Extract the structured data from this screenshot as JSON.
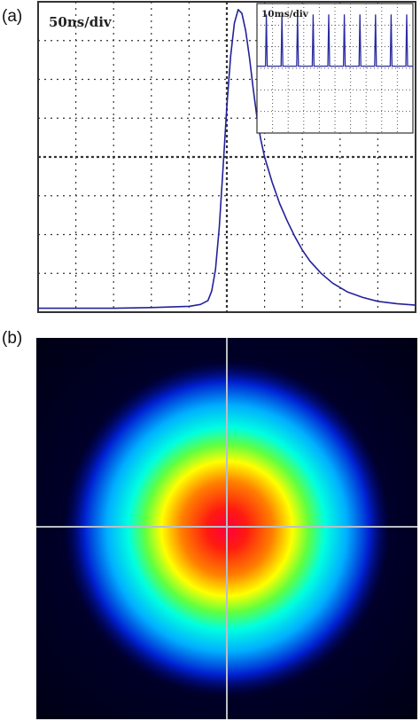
{
  "panels": [
    {
      "label": "(a)"
    },
    {
      "label": "(b)"
    }
  ],
  "chart_data": [
    {
      "type": "line",
      "panel": "(a)",
      "annotation": "50ns/div",
      "xlim": [
        0,
        10
      ],
      "ylim": [
        0,
        8
      ],
      "grid": true,
      "grid_style": "dotted oscilloscope graticule, 10 x 8 divisions",
      "line_color": "#22229a",
      "series": [
        {
          "x": [
            0,
            1,
            2,
            3,
            4,
            4.3,
            4.5,
            4.6,
            4.7,
            4.8,
            4.9,
            5.0,
            5.1,
            5.2,
            5.3,
            5.4,
            5.5,
            5.6,
            5.7,
            5.8,
            5.9,
            6.0,
            6.2,
            6.4,
            6.6,
            6.8,
            7.0,
            7.2,
            7.5,
            7.8,
            8.2,
            8.6,
            9.0,
            9.5,
            10
          ],
          "y": [
            0.1,
            0.1,
            0.1,
            0.12,
            0.15,
            0.2,
            0.3,
            0.55,
            1.1,
            2.2,
            3.7,
            5.3,
            6.6,
            7.45,
            7.8,
            7.7,
            7.25,
            6.55,
            5.75,
            5.0,
            4.45,
            4.0,
            3.35,
            2.8,
            2.35,
            1.95,
            1.6,
            1.32,
            1.0,
            0.75,
            0.52,
            0.38,
            0.28,
            0.22,
            0.18
          ]
        }
      ],
      "inset": {
        "type": "line",
        "annotation": "10ms/div",
        "xlim": [
          0,
          10
        ],
        "ylim": [
          0,
          6
        ],
        "baseline": 3.1,
        "pulse_positions": [
          0.6,
          1.6,
          2.6,
          3.6,
          4.6,
          5.6,
          6.6,
          7.6,
          8.6,
          9.6
        ],
        "pulse_height": 5.5
      }
    },
    {
      "type": "heatmap",
      "panel": "(b)",
      "description_colormap": [
        "#000066",
        "#0020d0",
        "#00b0ff",
        "#00ffe0",
        "#60ff40",
        "#ffff00",
        "#ff8000",
        "#ff1a10",
        "#ff0040"
      ],
      "crosshair_color": "#b8c0c8",
      "background_color": "#000015"
    }
  ]
}
